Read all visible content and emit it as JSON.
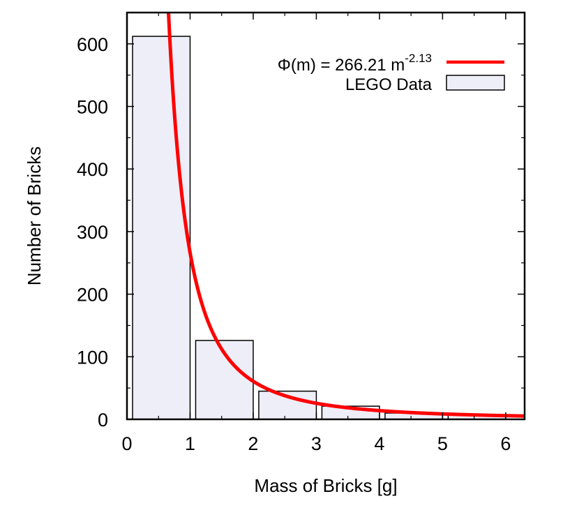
{
  "chart_data": {
    "type": "bar",
    "xlabel": "Mass of Bricks [g]",
    "ylabel": "Number of Bricks",
    "xlim": [
      0,
      6.3
    ],
    "ylim": [
      0,
      650
    ],
    "x_ticks": [
      0,
      1,
      2,
      3,
      4,
      5,
      6
    ],
    "y_ticks": [
      0,
      100,
      200,
      300,
      400,
      500,
      600
    ],
    "x_tick_labels": [
      "0",
      "1",
      "2",
      "3",
      "4",
      "5",
      "6"
    ],
    "y_tick_labels": [
      "0",
      "100",
      "200",
      "300",
      "400",
      "500",
      "600"
    ],
    "bins": [
      {
        "x0": 0,
        "x1": 1,
        "value": 612
      },
      {
        "x0": 1,
        "x1": 2,
        "value": 126
      },
      {
        "x0": 2,
        "x1": 3,
        "value": 45
      },
      {
        "x0": 3,
        "x1": 4,
        "value": 21
      },
      {
        "x0": 4,
        "x1": 5,
        "value": 10
      },
      {
        "x0": 5,
        "x1": 6,
        "value": 7
      }
    ],
    "bar_fill": "#eeeef8",
    "bar_stroke": "#000000",
    "fit": {
      "label_main": "Φ(m) = 266.21 m",
      "label_exponent": "-2.13",
      "coefficient": 266.21,
      "exponent": -2.13,
      "color": "#ff0000"
    },
    "legend": {
      "position": "top-right",
      "data_label": "LEGO Data"
    },
    "grid": false
  }
}
